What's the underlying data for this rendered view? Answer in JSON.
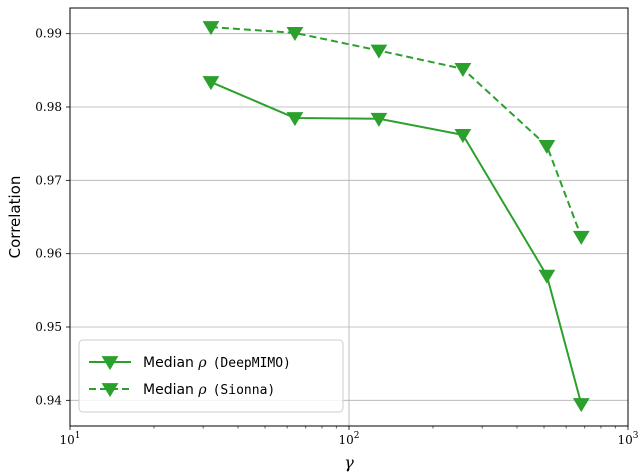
{
  "chart_data": {
    "type": "line",
    "xscale": "log",
    "xlim": [
      10,
      1000
    ],
    "ylim": [
      0.9365,
      0.9935
    ],
    "xlabel": "γ",
    "ylabel": "Correlation",
    "xticks": [
      {
        "value": 10,
        "base": "10",
        "exp": "1"
      },
      {
        "value": 100,
        "base": "10",
        "exp": "2"
      },
      {
        "value": 1000,
        "base": "10",
        "exp": "3"
      }
    ],
    "yticks": [
      {
        "value": 0.94,
        "label": "0.94"
      },
      {
        "value": 0.95,
        "label": "0.95"
      },
      {
        "value": 0.96,
        "label": "0.96"
      },
      {
        "value": 0.97,
        "label": "0.97"
      },
      {
        "value": 0.98,
        "label": "0.98"
      },
      {
        "value": 0.99,
        "label": "0.99"
      }
    ],
    "grid": true,
    "legend_position": "lower-left",
    "series": [
      {
        "name": "Median ρ (DeepMIMO)",
        "legend_prefix": "Median ",
        "legend_symbol": "ρ",
        "legend_paren": "(DeepMIMO)",
        "style": "solid",
        "marker": "triangle-down",
        "color": "#2ca02c",
        "x": [
          32,
          64,
          128,
          256,
          512,
          680
        ],
        "y": [
          0.9834,
          0.9785,
          0.9784,
          0.9762,
          0.957,
          0.9395
        ]
      },
      {
        "name": "Median ρ (Sionna)",
        "legend_prefix": "Median ",
        "legend_symbol": "ρ",
        "legend_paren": "(Sionna)",
        "style": "dashed",
        "marker": "triangle-down",
        "color": "#2ca02c",
        "x": [
          32,
          64,
          128,
          256,
          512,
          680
        ],
        "y": [
          0.9909,
          0.9901,
          0.9877,
          0.9852,
          0.9747,
          0.9623
        ]
      }
    ]
  }
}
